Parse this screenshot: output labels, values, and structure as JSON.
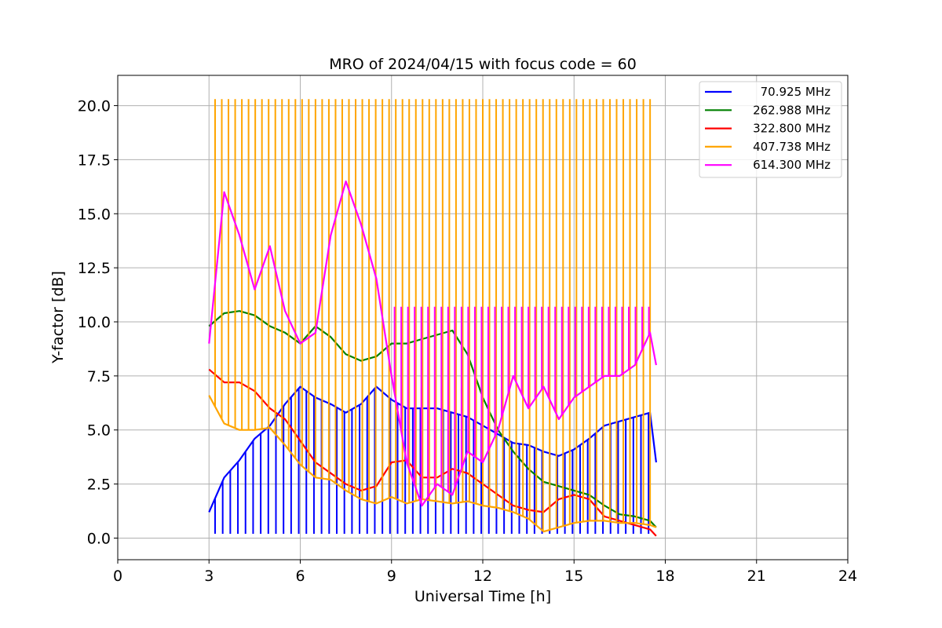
{
  "chart_data": {
    "type": "line",
    "title": "MRO of 2024/04/15 with focus code = 60",
    "xlabel": "Universal Time [h]",
    "ylabel": "Y-factor [dB]",
    "xlim": [
      0,
      24
    ],
    "ylim": [
      -1.0,
      21.4
    ],
    "x_ticks": [
      0,
      3,
      6,
      9,
      12,
      15,
      18,
      21,
      24
    ],
    "x_tick_labels": [
      "0",
      "3",
      "6",
      "9",
      "12",
      "15",
      "18",
      "21",
      "24"
    ],
    "y_ticks": [
      0.0,
      2.5,
      5.0,
      7.5,
      10.0,
      12.5,
      15.0,
      17.5,
      20.0
    ],
    "y_tick_labels": [
      "0.0",
      "2.5",
      "5.0",
      "7.5",
      "10.0",
      "12.5",
      "15.0",
      "17.5",
      "20.0"
    ],
    "grid": true,
    "legend_position": "top-right",
    "series": [
      {
        "name": "70.925 MHz",
        "color": "#0000ff",
        "spikes": {
          "start": 3.2,
          "end": 17.5,
          "period": 0.25,
          "to": 0.2
        },
        "x": [
          3.0,
          3.5,
          4.0,
          4.5,
          5.0,
          5.5,
          6.0,
          6.5,
          7.0,
          7.5,
          8.0,
          8.5,
          9.0,
          9.5,
          10.0,
          10.5,
          11.0,
          11.5,
          12.0,
          12.5,
          13.0,
          13.5,
          14.0,
          14.5,
          15.0,
          15.5,
          16.0,
          16.5,
          17.0,
          17.5,
          17.7
        ],
        "y": [
          1.2,
          2.8,
          3.6,
          4.6,
          5.2,
          6.2,
          7.0,
          6.5,
          6.2,
          5.8,
          6.2,
          7.0,
          6.4,
          6.0,
          6.0,
          6.0,
          5.8,
          5.6,
          5.2,
          4.8,
          4.4,
          4.3,
          4.0,
          3.8,
          4.1,
          4.6,
          5.2,
          5.4,
          5.6,
          5.8,
          3.5
        ]
      },
      {
        "name": "262.988 MHz",
        "color": "#008000",
        "spikes": null,
        "x": [
          3.0,
          3.5,
          4.0,
          4.5,
          5.0,
          5.5,
          6.0,
          6.5,
          7.0,
          7.5,
          8.0,
          8.5,
          9.0,
          9.5,
          10.0,
          10.5,
          11.0,
          11.5,
          12.0,
          12.5,
          13.0,
          13.5,
          14.0,
          14.5,
          15.0,
          15.5,
          16.0,
          16.5,
          17.0,
          17.5,
          17.7
        ],
        "y": [
          9.8,
          10.4,
          10.5,
          10.3,
          9.8,
          9.5,
          9.0,
          9.8,
          9.3,
          8.5,
          8.2,
          8.4,
          9.0,
          9.0,
          9.2,
          9.4,
          9.6,
          8.5,
          6.5,
          5.0,
          4.0,
          3.2,
          2.6,
          2.4,
          2.2,
          2.0,
          1.5,
          1.1,
          1.0,
          0.8,
          0.5
        ]
      },
      {
        "name": "322.800 MHz",
        "color": "#ff0000",
        "spikes": null,
        "x": [
          3.0,
          3.5,
          4.0,
          4.5,
          5.0,
          5.5,
          6.0,
          6.5,
          7.0,
          7.5,
          8.0,
          8.5,
          9.0,
          9.5,
          10.0,
          10.5,
          11.0,
          11.5,
          12.0,
          12.5,
          13.0,
          13.5,
          14.0,
          14.5,
          15.0,
          15.5,
          16.0,
          16.5,
          17.0,
          17.5,
          17.7
        ],
        "y": [
          7.8,
          7.2,
          7.2,
          6.8,
          6.0,
          5.5,
          4.5,
          3.5,
          3.0,
          2.5,
          2.2,
          2.4,
          3.5,
          3.6,
          2.8,
          2.8,
          3.2,
          3.0,
          2.5,
          2.0,
          1.5,
          1.3,
          1.2,
          1.8,
          2.0,
          1.8,
          1.0,
          0.8,
          0.6,
          0.4,
          0.1
        ]
      },
      {
        "name": "407.738 MHz",
        "color": "#ffa500",
        "spikes": {
          "start": 3.2,
          "end": 17.5,
          "period": 0.22,
          "to": 20.3
        },
        "x": [
          3.0,
          3.5,
          4.0,
          4.5,
          5.0,
          5.5,
          6.0,
          6.5,
          7.0,
          7.5,
          8.0,
          8.5,
          9.0,
          9.5,
          10.0,
          10.5,
          11.0,
          11.5,
          12.0,
          12.5,
          13.0,
          13.5,
          14.0,
          14.5,
          15.0,
          15.5,
          16.0,
          16.5,
          17.0,
          17.5,
          17.7
        ],
        "y": [
          6.6,
          5.3,
          5.0,
          5.0,
          5.1,
          4.3,
          3.4,
          2.8,
          2.7,
          2.2,
          1.8,
          1.6,
          1.9,
          1.6,
          1.8,
          1.7,
          1.6,
          1.7,
          1.5,
          1.4,
          1.2,
          0.9,
          0.3,
          0.5,
          0.7,
          0.8,
          0.8,
          0.7,
          0.7,
          0.6,
          0.5
        ]
      },
      {
        "name": "614.300 MHz",
        "color": "#ff00ff",
        "spikes": {
          "start": 9.1,
          "end": 17.5,
          "period": 0.22,
          "to": 10.7
        },
        "x": [
          3.0,
          3.5,
          4.0,
          4.5,
          5.0,
          5.5,
          6.0,
          6.5,
          7.0,
          7.5,
          8.0,
          8.5,
          9.0,
          9.5,
          10.0,
          10.5,
          11.0,
          11.5,
          12.0,
          12.5,
          13.0,
          13.5,
          14.0,
          14.5,
          15.0,
          15.5,
          16.0,
          16.5,
          17.0,
          17.5,
          17.7
        ],
        "y": [
          9.0,
          16.0,
          14.0,
          11.5,
          13.5,
          10.5,
          9.0,
          9.5,
          14.0,
          16.5,
          14.5,
          12.0,
          7.5,
          3.5,
          1.5,
          2.5,
          2.0,
          4.0,
          3.5,
          5.0,
          7.5,
          6.0,
          7.0,
          5.5,
          6.5,
          7.0,
          7.5,
          7.5,
          8.0,
          9.5,
          8.0
        ]
      }
    ]
  }
}
